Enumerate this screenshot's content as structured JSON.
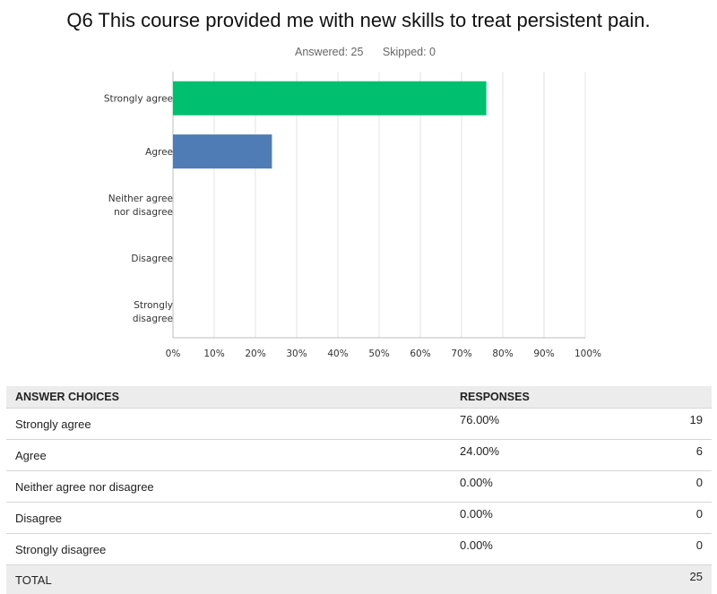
{
  "header": {
    "title": "Q6 This course provided me with new skills to treat persistent pain.",
    "answered": "Answered: 25",
    "skipped": "Skipped: 0"
  },
  "colors": {
    "bar_primary": "#00bf6f",
    "bar_secondary": "#507cb6",
    "grid": "#e3e3e3"
  },
  "chart_data": {
    "type": "bar",
    "orientation": "horizontal",
    "categories": [
      "Strongly agree",
      "Agree",
      "Neither agree nor disagree",
      "Disagree",
      "Strongly disagree"
    ],
    "values": [
      76,
      24,
      0,
      0,
      0
    ],
    "xlim": [
      0,
      100
    ],
    "xticks": [
      "0%",
      "10%",
      "20%",
      "30%",
      "40%",
      "50%",
      "60%",
      "70%",
      "80%",
      "90%",
      "100%"
    ],
    "grid": true
  },
  "table": {
    "headers": [
      "ANSWER CHOICES",
      "RESPONSES",
      ""
    ],
    "rows": [
      {
        "choice": "Strongly agree",
        "percent": "76.00%",
        "count": "19"
      },
      {
        "choice": "Agree",
        "percent": "24.00%",
        "count": "6"
      },
      {
        "choice": "Neither agree nor disagree",
        "percent": "0.00%",
        "count": "0"
      },
      {
        "choice": "Disagree",
        "percent": "0.00%",
        "count": "0"
      },
      {
        "choice": "Strongly disagree",
        "percent": "0.00%",
        "count": "0"
      }
    ],
    "total_label": "TOTAL",
    "total_count": "25"
  }
}
